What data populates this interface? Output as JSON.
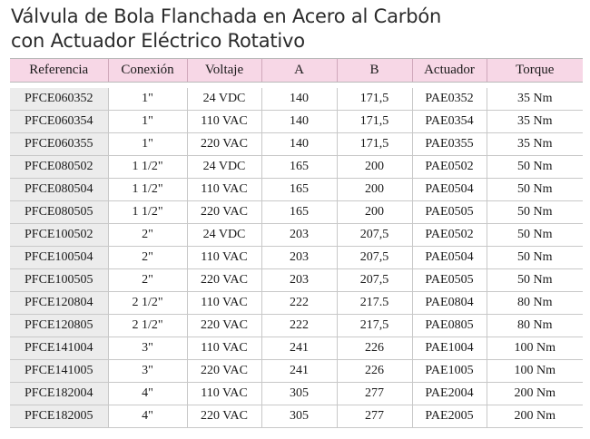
{
  "title": {
    "line1": "Válvula de Bola Flanchada en Acero al Carbón",
    "line2": "con Actuador Eléctrico Rotativo"
  },
  "table": {
    "headers": [
      "Referencia",
      "Conexión",
      "Voltaje",
      "A",
      "B",
      "Actuador",
      "Torque"
    ],
    "rows": [
      [
        "PFCE060352",
        "1\"",
        "24 VDC",
        "140",
        "171,5",
        "PAE0352",
        "35 Nm"
      ],
      [
        "PFCE060354",
        "1\"",
        "110 VAC",
        "140",
        "171,5",
        "PAE0354",
        "35 Nm"
      ],
      [
        "PFCE060355",
        "1\"",
        "220 VAC",
        "140",
        "171,5",
        "PAE0355",
        "35 Nm"
      ],
      [
        "PFCE080502",
        "1 1/2\"",
        "24 VDC",
        "165",
        "200",
        "PAE0502",
        "50 Nm"
      ],
      [
        "PFCE080504",
        "1 1/2\"",
        "110 VAC",
        "165",
        "200",
        "PAE0504",
        "50 Nm"
      ],
      [
        "PFCE080505",
        "1 1/2\"",
        "220 VAC",
        "165",
        "200",
        "PAE0505",
        "50 Nm"
      ],
      [
        "PFCE100502",
        "2\"",
        "24 VDC",
        "203",
        "207,5",
        "PAE0502",
        "50 Nm"
      ],
      [
        "PFCE100504",
        "2\"",
        "110 VAC",
        "203",
        "207,5",
        "PAE0504",
        "50 Nm"
      ],
      [
        "PFCE100505",
        "2\"",
        "220 VAC",
        "203",
        "207,5",
        "PAE0505",
        "50 Nm"
      ],
      [
        "PFCE120804",
        "2 1/2\"",
        "110 VAC",
        "222",
        "217.5",
        "PAE0804",
        "80 Nm"
      ],
      [
        "PFCE120805",
        "2 1/2\"",
        "220 VAC",
        "222",
        "217,5",
        "PAE0805",
        "80 Nm"
      ],
      [
        "PFCE141004",
        "3\"",
        "110 VAC",
        "241",
        "226",
        "PAE1004",
        "100 Nm"
      ],
      [
        "PFCE141005",
        "3\"",
        "220 VAC",
        "241",
        "226",
        "PAE1005",
        "100 Nm"
      ],
      [
        "PFCE182004",
        "4\"",
        "110 VAC",
        "305",
        "277",
        "PAE2004",
        "200 Nm"
      ],
      [
        "PFCE182005",
        "4\"",
        "220 VAC",
        "305",
        "277",
        "PAE2005",
        "200 Nm"
      ]
    ]
  },
  "colors": {
    "header_bg": "#f7d7e6",
    "reference_col_bg": "#ececec"
  }
}
